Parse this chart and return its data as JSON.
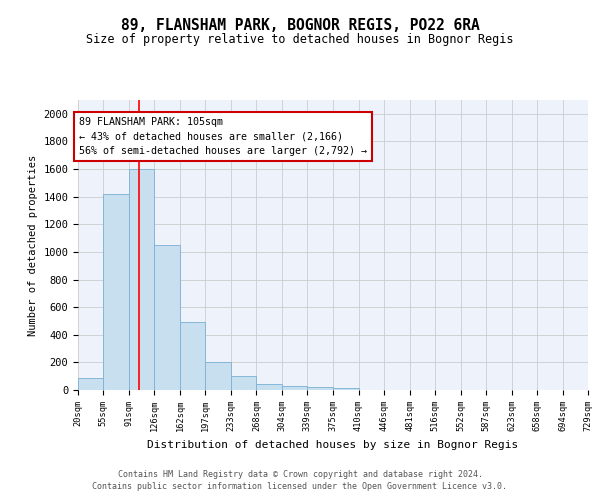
{
  "title": "89, FLANSHAM PARK, BOGNOR REGIS, PO22 6RA",
  "subtitle": "Size of property relative to detached houses in Bognor Regis",
  "xlabel": "Distribution of detached houses by size in Bognor Regis",
  "ylabel": "Number of detached properties",
  "bar_heights": [
    85,
    1420,
    1600,
    1050,
    490,
    205,
    105,
    40,
    28,
    22,
    18,
    0,
    0,
    0,
    0,
    0,
    0,
    0,
    0,
    0
  ],
  "bin_edges": [
    20,
    55,
    91,
    126,
    162,
    197,
    233,
    268,
    304,
    339,
    375,
    410,
    446,
    481,
    516,
    552,
    587,
    623,
    658,
    694,
    729
  ],
  "tick_labels": [
    "20sqm",
    "55sqm",
    "91sqm",
    "126sqm",
    "162sqm",
    "197sqm",
    "233sqm",
    "268sqm",
    "304sqm",
    "339sqm",
    "375sqm",
    "410sqm",
    "446sqm",
    "481sqm",
    "516sqm",
    "552sqm",
    "587sqm",
    "623sqm",
    "658sqm",
    "694sqm",
    "729sqm"
  ],
  "bar_color": "#c8dff0",
  "bar_edge_color": "#7ab0d4",
  "grid_color": "#cccccc",
  "red_line_x": 105,
  "annotation_title": "89 FLANSHAM PARK: 105sqm",
  "annotation_line1": "← 43% of detached houses are smaller (2,166)",
  "annotation_line2": "56% of semi-detached houses are larger (2,792) →",
  "annotation_box_color": "#ffffff",
  "annotation_box_edge": "#cc0000",
  "ylim": [
    0,
    2100
  ],
  "yticks": [
    0,
    200,
    400,
    600,
    800,
    1000,
    1200,
    1400,
    1600,
    1800,
    2000
  ],
  "footer1": "Contains HM Land Registry data © Crown copyright and database right 2024.",
  "footer2": "Contains public sector information licensed under the Open Government Licence v3.0.",
  "bg_color": "#eef2fb"
}
